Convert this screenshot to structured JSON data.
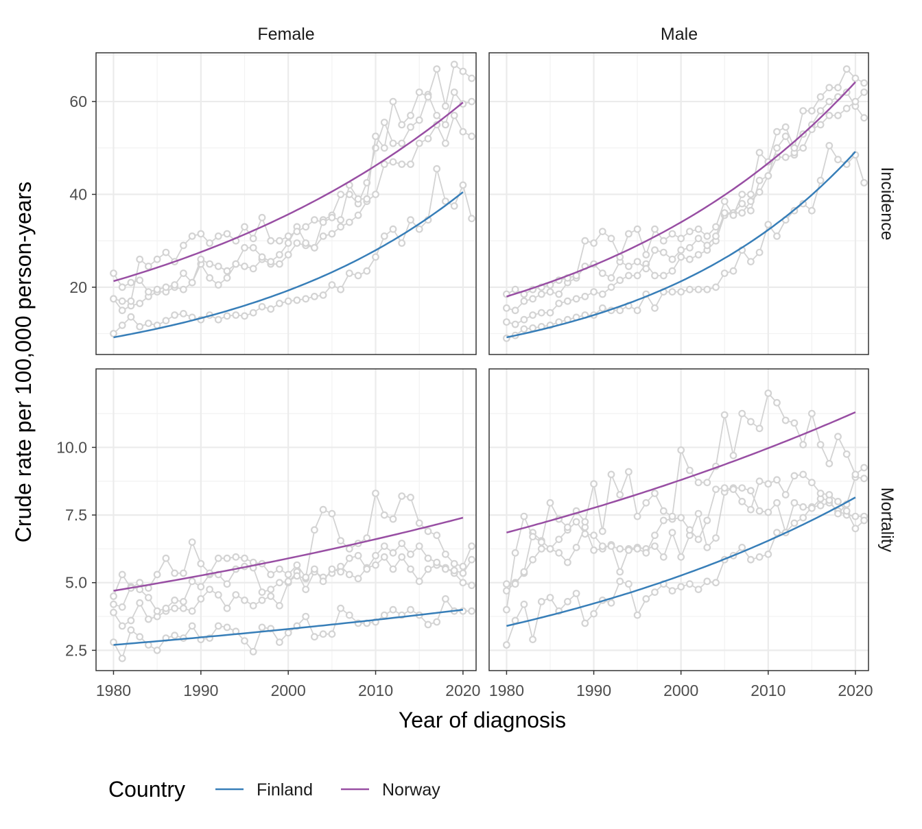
{
  "chart_data": {
    "type": "line",
    "xlabel": "Year of diagnosis",
    "ylabel": "Crude rate per 100,000 person-years",
    "legend": {
      "title": "Country",
      "placement": "bottom",
      "items": [
        {
          "name": "Finland",
          "color": "#377eb8"
        },
        {
          "name": "Norway",
          "color": "#984ea3"
        }
      ]
    },
    "facet_columns": [
      "Female",
      "Male"
    ],
    "facet_rows": [
      "Incidence",
      "Mortality"
    ],
    "observed_color": "#d3d3d3",
    "grid": true,
    "x_ticks": [
      1980,
      1990,
      2000,
      2010,
      2020
    ],
    "xlim": [
      1978,
      2021.5
    ],
    "rows": [
      {
        "name": "Incidence",
        "ylim": [
          5.5,
          70.5
        ],
        "y_ticks": [
          20,
          40,
          60
        ],
        "y_tick_labels": [
          "20",
          "40",
          "60"
        ]
      },
      {
        "name": "Mortality",
        "ylim": [
          1.75,
          12.9
        ],
        "y_ticks": [
          2.5,
          5.0,
          7.5,
          10.0
        ],
        "y_tick_labels": [
          "2.5",
          "5.0",
          "7.5",
          "10.0"
        ]
      }
    ],
    "panels": [
      {
        "column": "Female",
        "row": "Incidence",
        "fitted": [
          {
            "name": "Finland",
            "start": 9.2,
            "end": 40.5
          },
          {
            "name": "Norway",
            "start": 21.3,
            "end": 59.8
          }
        ],
        "observed": [
          {
            "start": 1980,
            "values": [
              10.0,
              11.8,
              13.6,
              11.5,
              12.2,
              11.8,
              12.8,
              14.0,
              14.3,
              13.5,
              13.0,
              14.0,
              13.0,
              13.8,
              14.0,
              13.8,
              14.5,
              15.8,
              15.3,
              16.5,
              17.0,
              17.2,
              17.5,
              18.0,
              18.3,
              20.5,
              19.5,
              23.0,
              22.5,
              23.5,
              26.5,
              31.0,
              32.5,
              29.5,
              34.5,
              32.5,
              34.5,
              45.5,
              38.5,
              37.5,
              42.0,
              34.8
            ]
          },
          {
            "start": 1980,
            "values": [
              17.5,
              15.0,
              16.0,
              16.5,
              18.0,
              19.0,
              19.0,
              20.0,
              19.5,
              21.0,
              25.0,
              22.0,
              20.5,
              22.0,
              25.0,
              24.5,
              24.0,
              26.0,
              25.0,
              25.0,
              27.0,
              29.5,
              29.0,
              28.5,
              31.0,
              31.5,
              33.0,
              34.0,
              35.5,
              38.5,
              40.0,
              46.5,
              47.0,
              46.5,
              46.5,
              51.0,
              52.0,
              55.0,
              51.0,
              57.0,
              53.5,
              52.5
            ]
          },
          {
            "start": 1980,
            "values": [
              23.0,
              20.0,
              21.0,
              21.5,
              19.0,
              19.5,
              20.0,
              20.5,
              23.0,
              21.0,
              26.0,
              25.0,
              24.5,
              23.5,
              25.0,
              28.5,
              28.5,
              26.5,
              25.5,
              27.0,
              29.5,
              33.0,
              29.5,
              28.5,
              34.5,
              35.5,
              40.0,
              40.0,
              38.0,
              42.5,
              50.0,
              55.5,
              51.0,
              51.0,
              54.5,
              56.0,
              61.5,
              57.0,
              55.0,
              62.0,
              59.5,
              60.0
            ]
          },
          {
            "start": 1980,
            "values": [
              17.5,
              17.0,
              17.0,
              26.0,
              24.5,
              26.0,
              27.5,
              25.5,
              29.0,
              31.0,
              31.5,
              29.5,
              31.0,
              31.5,
              30.0,
              33.0,
              30.5,
              35.0,
              30.0,
              30.0,
              31.0,
              32.0,
              33.0,
              34.5,
              34.0,
              35.0,
              34.5,
              42.0,
              39.0,
              39.0,
              52.5,
              50.0,
              60.0,
              55.0,
              57.0,
              62.0,
              61.0,
              67.0,
              59.0,
              68.0,
              66.5,
              65.0
            ]
          }
        ]
      },
      {
        "column": "Male",
        "row": "Incidence",
        "fitted": [
          {
            "name": "Finland",
            "start": 9.2,
            "end": 49.2
          },
          {
            "name": "Norway",
            "start": 18.0,
            "end": 64.2
          }
        ],
        "observed": [
          {
            "start": 1980,
            "values": [
              9.0,
              9.6,
              11.0,
              11.2,
              11.5,
              11.8,
              12.5,
              13.0,
              13.5,
              14.0,
              14.0,
              15.5,
              15.0,
              15.0,
              16.0,
              15.0,
              18.5,
              15.5,
              19.0,
              19.0,
              19.0,
              19.5,
              19.5,
              19.5,
              20.0,
              23.0,
              23.5,
              28.0,
              25.5,
              27.5,
              33.5,
              31.0,
              34.5,
              36.5,
              38.0,
              36.5,
              43.0,
              50.5,
              47.5,
              46.5,
              48.5,
              42.5
            ]
          },
          {
            "start": 1980,
            "values": [
              12.5,
              12.0,
              13.0,
              14.0,
              14.5,
              14.5,
              16.5,
              17.0,
              17.5,
              18.0,
              19.0,
              18.5,
              20.0,
              21.5,
              22.5,
              22.5,
              25.0,
              22.5,
              22.5,
              23.5,
              26.5,
              26.0,
              27.0,
              28.0,
              30.0,
              35.5,
              36.0,
              36.0,
              38.5,
              40.5,
              44.0,
              48.0,
              48.0,
              48.5,
              53.0,
              55.0,
              58.0,
              60.0,
              61.0,
              62.0,
              59.0,
              56.5
            ]
          },
          {
            "start": 1980,
            "values": [
              15.5,
              15.0,
              17.0,
              17.5,
              18.5,
              19.0,
              18.5,
              21.0,
              22.0,
              24.5,
              25.0,
              23.0,
              22.0,
              25.5,
              24.5,
              25.5,
              24.0,
              28.0,
              27.5,
              26.0,
              28.0,
              28.5,
              30.5,
              29.0,
              31.0,
              36.0,
              36.0,
              38.0,
              36.5,
              43.0,
              44.0,
              50.0,
              52.5,
              49.0,
              50.0,
              54.0,
              55.0,
              57.0,
              57.0,
              58.5,
              60.0,
              62.0
            ]
          },
          {
            "start": 1980,
            "values": [
              18.5,
              19.5,
              18.5,
              19.5,
              20.0,
              20.5,
              21.5,
              22.0,
              22.5,
              30.0,
              29.5,
              32.0,
              30.5,
              26.5,
              31.5,
              32.5,
              27.0,
              32.5,
              30.0,
              31.5,
              30.5,
              32.0,
              32.5,
              31.0,
              33.0,
              38.5,
              35.5,
              40.0,
              40.0,
              49.0,
              47.0,
              53.5,
              54.5,
              50.0,
              58.0,
              58.0,
              61.0,
              63.0,
              63.0,
              67.0,
              65.0,
              64.0
            ]
          }
        ]
      },
      {
        "column": "Female",
        "row": "Mortality",
        "fitted": [
          {
            "name": "Finland",
            "start": 2.7,
            "end": 4.0
          },
          {
            "name": "Norway",
            "start": 4.7,
            "end": 7.4
          }
        ],
        "observed": [
          {
            "start": 1980,
            "values": [
              2.8,
              2.2,
              3.25,
              3.0,
              2.7,
              2.5,
              2.95,
              3.05,
              2.95,
              3.4,
              2.9,
              2.95,
              3.4,
              3.35,
              3.2,
              2.85,
              2.45,
              3.35,
              3.3,
              2.8,
              3.15,
              3.4,
              3.75,
              3.0,
              3.1,
              3.1,
              4.05,
              3.8,
              3.5,
              3.5,
              3.55,
              3.8,
              4.0,
              3.8,
              4.0,
              3.8,
              3.45,
              3.55,
              4.4,
              3.95,
              3.95,
              3.95
            ]
          },
          {
            "start": 1980,
            "values": [
              3.9,
              3.4,
              3.6,
              4.25,
              3.65,
              3.75,
              3.95,
              4.05,
              4.05,
              3.95,
              4.4,
              4.75,
              4.55,
              4.05,
              4.55,
              4.35,
              4.15,
              4.35,
              4.5,
              4.15,
              5.0,
              5.4,
              4.75,
              5.4,
              5.2,
              5.35,
              5.6,
              5.3,
              5.15,
              5.55,
              5.65,
              5.95,
              5.5,
              5.95,
              5.5,
              5.05,
              5.5,
              5.65,
              5.55,
              5.35,
              5.0,
              4.9
            ]
          },
          {
            "start": 1980,
            "values": [
              4.2,
              4.1,
              4.85,
              4.75,
              4.45,
              3.95,
              4.05,
              4.35,
              4.3,
              5.05,
              4.85,
              5.3,
              5.3,
              4.95,
              5.5,
              5.6,
              5.55,
              4.65,
              4.75,
              5.0,
              5.05,
              5.25,
              5.15,
              5.5,
              5.05,
              5.5,
              5.4,
              5.9,
              6.0,
              5.5,
              6.0,
              6.35,
              6.1,
              6.45,
              6.05,
              6.35,
              5.9,
              5.75,
              5.5,
              5.45,
              5.35,
              5.85
            ]
          },
          {
            "start": 1980,
            "values": [
              4.5,
              5.3,
              4.8,
              5.0,
              4.8,
              5.3,
              5.9,
              5.35,
              5.35,
              6.5,
              5.7,
              5.35,
              5.9,
              5.9,
              5.95,
              5.9,
              5.75,
              5.7,
              5.3,
              5.5,
              5.3,
              5.65,
              5.2,
              6.95,
              7.7,
              7.55,
              6.55,
              6.25,
              6.45,
              6.65,
              8.3,
              7.5,
              7.35,
              8.2,
              8.15,
              7.2,
              6.9,
              6.75,
              6.05,
              5.7,
              5.6,
              6.35
            ]
          }
        ]
      },
      {
        "column": "Male",
        "row": "Mortality",
        "fitted": [
          {
            "name": "Finland",
            "start": 3.4,
            "end": 8.15
          },
          {
            "name": "Norway",
            "start": 6.85,
            "end": 11.3
          }
        ],
        "observed": [
          {
            "start": 1980,
            "values": [
              2.7,
              3.6,
              4.2,
              2.9,
              4.3,
              4.45,
              3.95,
              4.3,
              4.6,
              3.5,
              3.85,
              4.35,
              4.25,
              5.05,
              4.95,
              3.8,
              4.4,
              4.65,
              4.95,
              4.7,
              4.85,
              4.95,
              4.75,
              5.05,
              5.0,
              5.85,
              6.0,
              6.3,
              5.85,
              5.95,
              6.05,
              6.85,
              6.85,
              7.2,
              7.4,
              7.8,
              7.85,
              7.95,
              7.65,
              7.5,
              7.45,
              7.45
            ]
          },
          {
            "start": 1980,
            "values": [
              4.7,
              5.0,
              5.35,
              5.85,
              6.25,
              6.25,
              6.1,
              5.75,
              6.3,
              7.05,
              6.2,
              6.25,
              6.4,
              5.4,
              6.25,
              6.3,
              6.25,
              6.35,
              5.95,
              6.85,
              5.95,
              6.75,
              7.55,
              6.3,
              6.65,
              8.35,
              8.5,
              8.5,
              8.4,
              7.65,
              7.6,
              7.95,
              6.85,
              7.95,
              7.8,
              7.75,
              8.1,
              8.05,
              7.55,
              7.9,
              8.9,
              8.85
            ]
          },
          {
            "start": 1980,
            "values": [
              4.95,
              4.95,
              5.4,
              6.85,
              6.55,
              6.25,
              6.6,
              6.95,
              7.25,
              6.8,
              6.75,
              6.35,
              6.35,
              6.25,
              6.2,
              6.25,
              6.1,
              6.75,
              7.3,
              7.35,
              7.4,
              6.95,
              6.6,
              7.3,
              8.45,
              8.5,
              8.45,
              8.0,
              7.7,
              8.75,
              8.65,
              8.8,
              8.25,
              8.95,
              9.0,
              8.7,
              8.3,
              8.25,
              8.0,
              7.65,
              7.0,
              7.3
            ]
          },
          {
            "start": 1980,
            "values": [
              4.0,
              6.1,
              7.45,
              6.7,
              6.5,
              7.95,
              7.35,
              7.05,
              7.65,
              7.25,
              8.65,
              6.9,
              9.0,
              8.25,
              9.1,
              7.45,
              7.95,
              8.3,
              7.65,
              7.45,
              9.9,
              9.15,
              8.7,
              8.7,
              9.3,
              11.2,
              9.7,
              11.25,
              10.95,
              10.7,
              12.0,
              11.65,
              11.0,
              10.9,
              10.1,
              11.25,
              10.1,
              9.4,
              10.4,
              9.75,
              9.0,
              9.25
            ]
          }
        ]
      }
    ]
  }
}
